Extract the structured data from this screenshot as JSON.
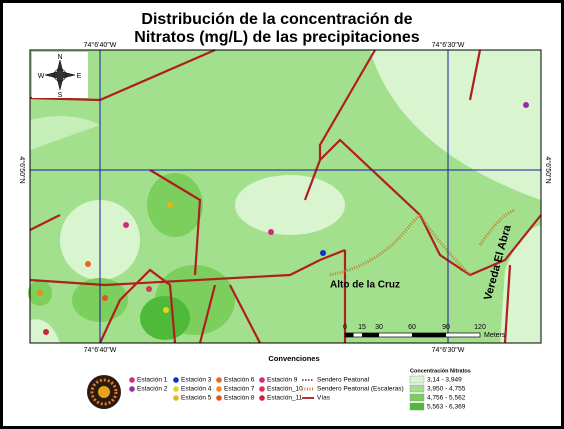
{
  "title": [
    "Distribución de la concentración de",
    "Nitratos (mg/L) de las precipitaciones"
  ],
  "coordinates": {
    "top": [
      "74°6'40\"W",
      "74°6'30\"W"
    ],
    "bottom": [
      "74°6'40\"W",
      "74°6'30\"W"
    ],
    "left": "4°6'50\"N",
    "right": "4°6'50\"N"
  },
  "compass": {
    "north": "N",
    "south": "S",
    "east": "E",
    "west": "W"
  },
  "places": [
    "Alto de la Cruz",
    "Vereda El Abra"
  ],
  "scale": {
    "ticks": [
      0,
      15,
      30,
      60,
      90,
      120
    ],
    "unit": "Meters"
  },
  "legend": {
    "title": "Convenciones",
    "stations": [
      "Estación 1",
      "Estación 2",
      "Estación 3",
      "Estación 4",
      "Estación 5",
      "Estación 6",
      "Estación 7",
      "Estación 8",
      "Estación 9",
      "Estación_10",
      "Estación_11"
    ],
    "lines": [
      "Sendero Peatonal",
      "Sendero Peatonal (Escaleras)",
      "Vías"
    ],
    "nitrates": {
      "title": "Concentración Nitratos",
      "classes": [
        "3,14 - 3,949",
        "3,950 - 4,755",
        "4,756 - 5,562",
        "5,563 - 6,369"
      ]
    }
  }
}
